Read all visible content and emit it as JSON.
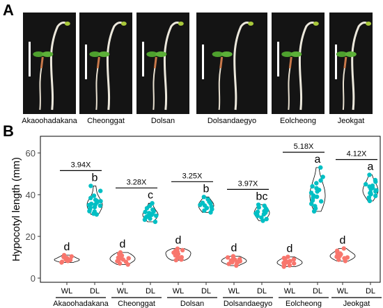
{
  "panel_a": {
    "label": "A",
    "photos": [
      {
        "caption": "Akaoohadakana"
      },
      {
        "caption": "Cheonggat"
      },
      {
        "caption": "Dolsan"
      },
      {
        "caption": "Dolsandaegyo"
      },
      {
        "caption": "Eolcheong"
      },
      {
        "caption": "Jeokgat"
      }
    ]
  },
  "panel_b": {
    "label": "B"
  },
  "colors": {
    "wl": "#f8766d",
    "dl": "#00bfc4",
    "photo_bg": "#141414"
  },
  "chart_data": {
    "type": "scatter",
    "subtype": "violin-with-jitter",
    "ylabel": "Hypocotyl length (mm)",
    "ylim": [
      -2,
      68
    ],
    "yticks": [
      0,
      20,
      40,
      60
    ],
    "grid": false,
    "groups": [
      {
        "cultivar": "Akaoohadakana",
        "fold_change": "3.94X",
        "WL": {
          "label": "WL",
          "letter": "d",
          "values": [
            8.5,
            9.2,
            7.8,
            10.1,
            8.9,
            9.6,
            7.5,
            10.4,
            8.2,
            9.0,
            11.0,
            8.7
          ]
        },
        "DL": {
          "label": "DL",
          "letter": "b",
          "values": [
            30.5,
            32.1,
            34.0,
            35.6,
            36.2,
            33.8,
            37.5,
            31.9,
            38.4,
            35.0,
            34.7,
            36.9,
            33.1,
            39.5,
            41.8,
            44.2,
            30.9,
            35.3,
            37.0
          ]
        }
      },
      {
        "cultivar": "Cheonggat",
        "fold_change": "3.28X",
        "WL": {
          "label": "WL",
          "letter": "d",
          "values": [
            7.0,
            8.4,
            9.5,
            10.8,
            11.6,
            8.9,
            12.3,
            9.8,
            7.8,
            10.2,
            11.1,
            8.1,
            6.5,
            9.2
          ]
        },
        "DL": {
          "label": "DL",
          "letter": "c",
          "values": [
            27.0,
            28.5,
            29.6,
            30.4,
            31.2,
            32.0,
            30.8,
            29.1,
            33.5,
            34.6,
            31.7,
            28.0,
            30.1,
            32.8,
            35.9,
            29.9
          ]
        }
      },
      {
        "cultivar": "Dolsan",
        "fold_change": "3.25X",
        "WL": {
          "label": "WL",
          "letter": "d",
          "values": [
            8.6,
            10.4,
            11.5,
            12.6,
            13.4,
            9.8,
            14.1,
            10.9,
            11.9,
            8.9,
            12.2,
            13.0,
            10.0
          ]
        },
        "DL": {
          "label": "DL",
          "letter": "b",
          "values": [
            31.5,
            33.0,
            34.2,
            35.7,
            36.6,
            37.8,
            33.6,
            35.1,
            38.9,
            32.4,
            36.1,
            34.8
          ]
        }
      },
      {
        "cultivar": "Dolsandaegyo",
        "fold_change": "3.97X",
        "WL": {
          "label": "WL",
          "letter": "d",
          "values": [
            6.0,
            7.2,
            8.4,
            9.1,
            9.9,
            7.6,
            8.8,
            10.5,
            6.8,
            8.1,
            9.5,
            7.9
          ]
        },
        "DL": {
          "label": "DL",
          "letter": "bc",
          "values": [
            27.5,
            29.0,
            30.3,
            31.4,
            32.6,
            33.9,
            31.0,
            29.8,
            34.7,
            32.1,
            30.6,
            28.3,
            35.2,
            33.3,
            31.8
          ]
        }
      },
      {
        "cultivar": "Eolcheong",
        "fold_change": "5.18X",
        "WL": {
          "label": "WL",
          "letter": "d",
          "values": [
            5.5,
            6.4,
            7.3,
            8.2,
            9.0,
            7.0,
            8.6,
            6.1,
            9.6,
            7.7,
            8.0,
            6.8,
            10.2
          ]
        },
        "DL": {
          "label": "DL",
          "letter": "a",
          "values": [
            32.0,
            34.5,
            36.8,
            38.4,
            39.6,
            40.9,
            42.3,
            44.0,
            45.5,
            37.2,
            41.5,
            43.1,
            35.6,
            46.8,
            39.0,
            53.0,
            33.4,
            48.5
          ]
        }
      },
      {
        "cultivar": "Jeokgat",
        "fold_change": "4.12X",
        "WL": {
          "label": "WL",
          "letter": "d",
          "values": [
            8.2,
            9.5,
            10.6,
            11.4,
            12.3,
            9.9,
            10.9,
            13.1,
            8.8,
            11.8,
            10.2,
            14.2
          ]
        },
        "DL": {
          "label": "DL",
          "letter": "a",
          "values": [
            37.0,
            38.6,
            40.2,
            41.5,
            42.7,
            43.9,
            45.0,
            39.4,
            44.3,
            41.0,
            46.2,
            43.2,
            40.7,
            42.1,
            47.0,
            49.5
          ]
        }
      }
    ]
  }
}
